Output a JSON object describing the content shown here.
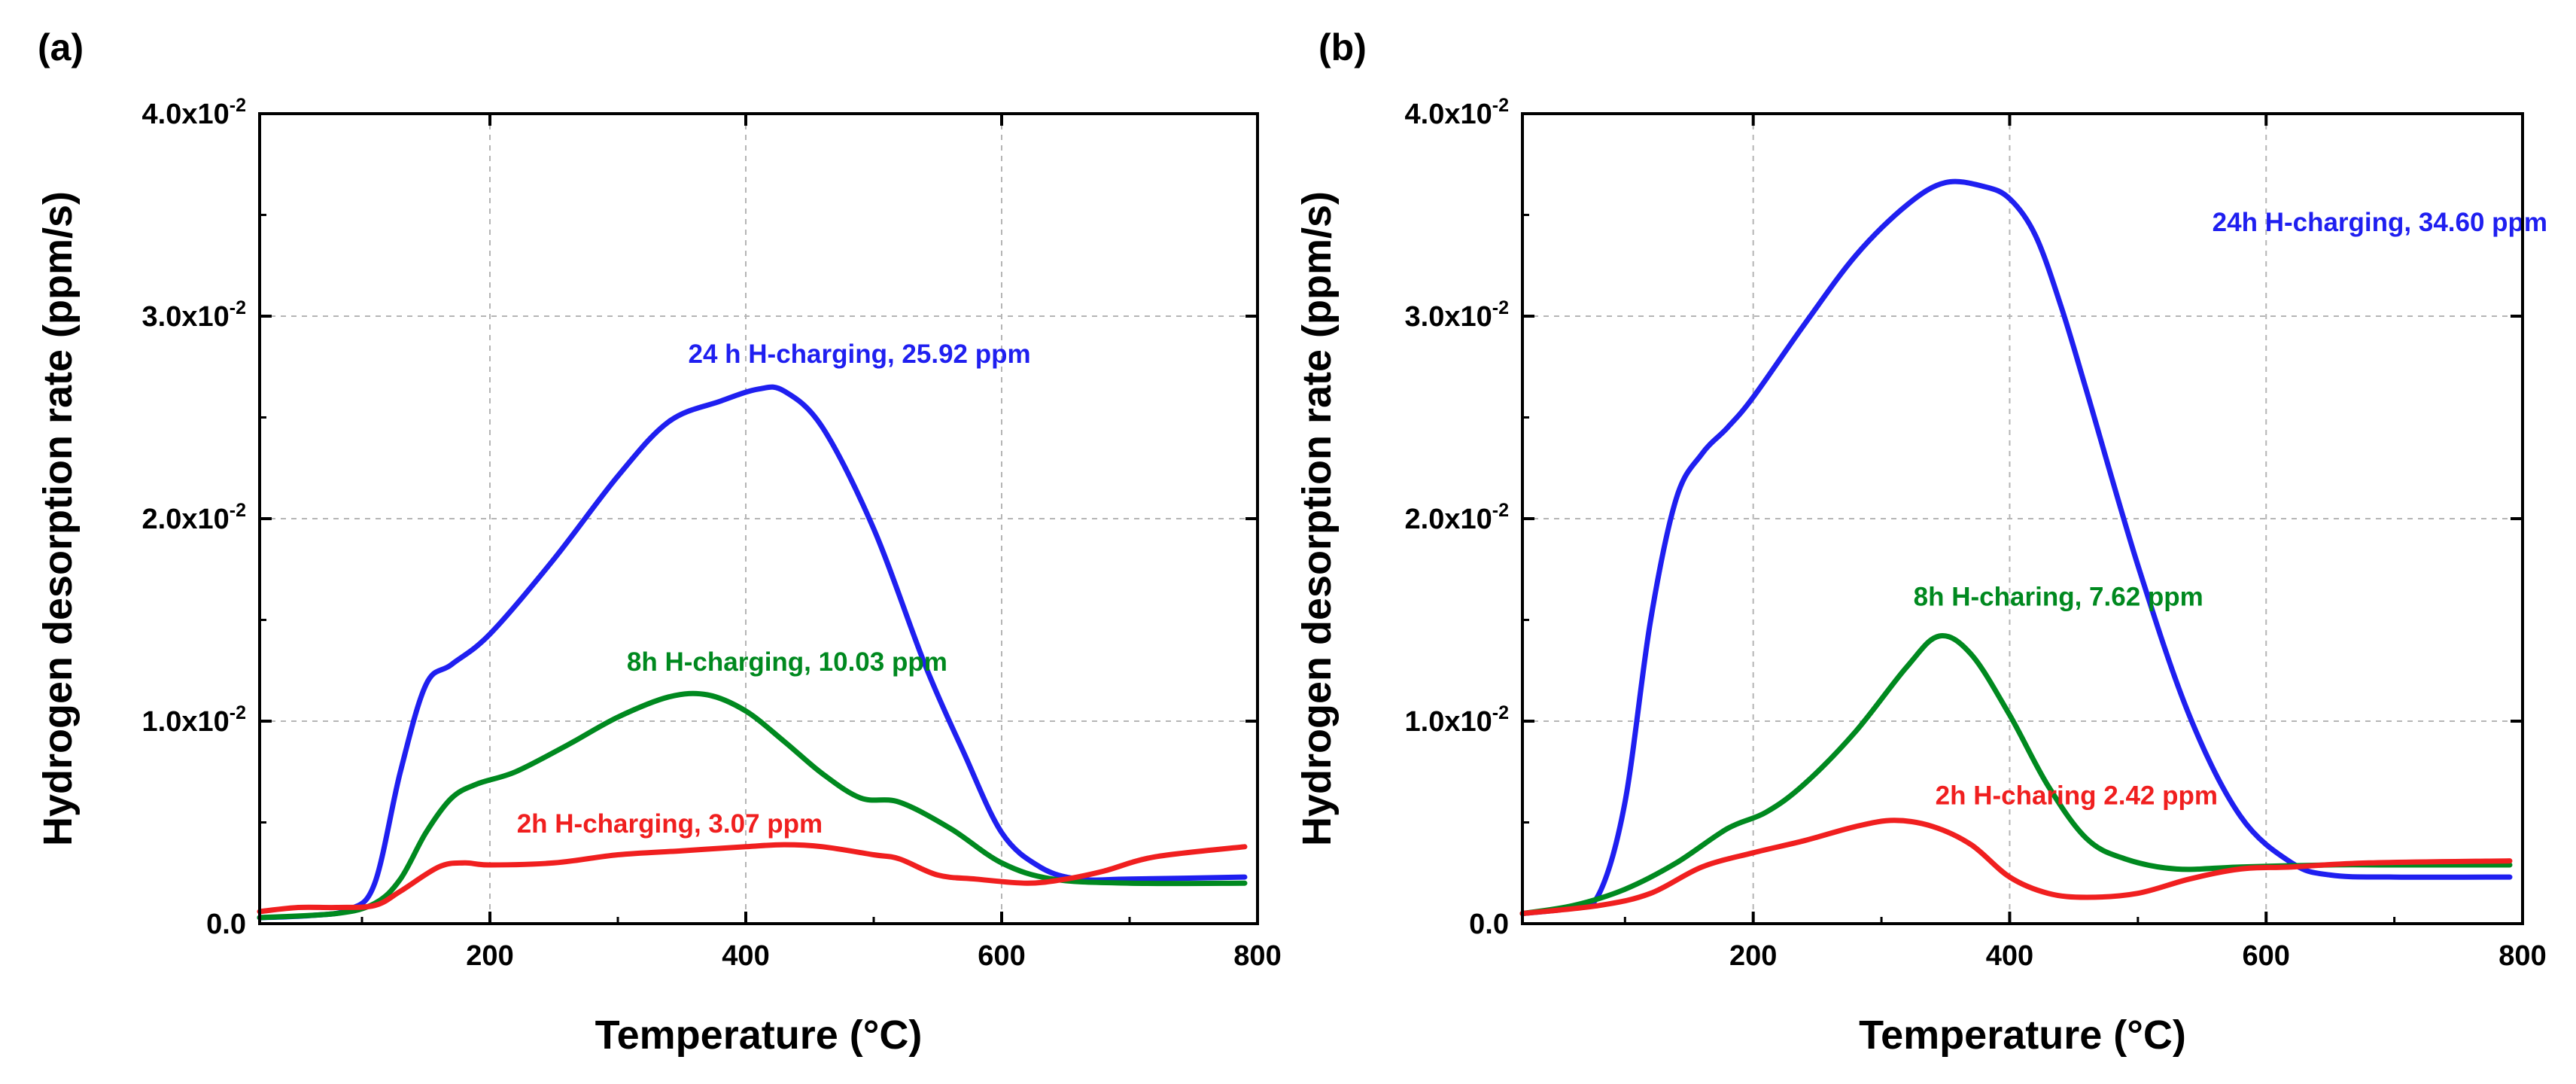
{
  "chart_data": [
    {
      "type": "line",
      "panel_label": "(a)",
      "xlabel": "Temperature (°C)",
      "ylabel": "Hydrogen desorption rate (ppm/s)",
      "xlim": [
        20,
        800
      ],
      "ylim": [
        0,
        0.04
      ],
      "xticks": [
        200,
        400,
        600,
        800
      ],
      "xtick_labels": [
        "200",
        "400",
        "600",
        "800"
      ],
      "yticks": [
        0,
        0.01,
        0.02,
        0.03,
        0.04
      ],
      "ytick_labels": [
        {
          "base": "0.0",
          "exp": ""
        },
        {
          "base": "1.0x10",
          "exp": "-2"
        },
        {
          "base": "2.0x10",
          "exp": "-2"
        },
        {
          "base": "3.0x10",
          "exp": "-2"
        },
        {
          "base": "4.0x10",
          "exp": "-2"
        }
      ],
      "grid": true,
      "series": [
        {
          "name": "24 h H-charging, 25.92 ppm",
          "color": "#1f1ff0",
          "x": [
            20,
            60,
            90,
            110,
            130,
            150,
            170,
            200,
            250,
            300,
            340,
            380,
            410,
            430,
            460,
            500,
            540,
            570,
            600,
            630,
            660,
            700,
            790
          ],
          "y": [
            0.0003,
            0.0004,
            0.0007,
            0.002,
            0.0075,
            0.0118,
            0.0128,
            0.0143,
            0.018,
            0.0221,
            0.0248,
            0.0258,
            0.0264,
            0.0263,
            0.0245,
            0.0195,
            0.0128,
            0.0085,
            0.0045,
            0.0028,
            0.0022,
            0.0022,
            0.0023
          ],
          "annotation": {
            "text": "24 h H-charging, 25.92 ppm",
            "x": 355,
            "y": 0.0277
          }
        },
        {
          "name": "8h H-charging, 10.03 ppm",
          "color": "#00891f",
          "x": [
            20,
            80,
            110,
            130,
            150,
            170,
            190,
            220,
            260,
            300,
            340,
            370,
            400,
            430,
            460,
            490,
            520,
            560,
            600,
            640,
            700,
            790
          ],
          "y": [
            0.0003,
            0.0005,
            0.001,
            0.0022,
            0.0045,
            0.0062,
            0.0069,
            0.0075,
            0.0088,
            0.0102,
            0.0112,
            0.0113,
            0.0105,
            0.009,
            0.0074,
            0.0062,
            0.006,
            0.0047,
            0.003,
            0.0022,
            0.002,
            0.002
          ],
          "annotation": {
            "text": "8h H-charging, 10.03 ppm",
            "x": 307,
            "y": 0.0125
          }
        },
        {
          "name": "2h H-charging, 3.07 ppm",
          "color": "#f01f1f",
          "x": [
            20,
            50,
            80,
            110,
            130,
            160,
            180,
            200,
            250,
            300,
            350,
            400,
            430,
            460,
            500,
            520,
            550,
            580,
            620,
            650,
            680,
            720,
            790
          ],
          "y": [
            0.0006,
            0.0008,
            0.0008,
            0.0009,
            0.0016,
            0.0028,
            0.003,
            0.0029,
            0.003,
            0.0034,
            0.0036,
            0.0038,
            0.0039,
            0.0038,
            0.0034,
            0.0032,
            0.0024,
            0.0022,
            0.002,
            0.0022,
            0.0026,
            0.0033,
            0.0038
          ],
          "annotation": {
            "text": "2h H-charging, 3.07 ppm",
            "x": 221,
            "y": 0.0045
          }
        }
      ]
    },
    {
      "type": "line",
      "panel_label": "(b)",
      "xlabel": "Temperature (°C)",
      "ylabel": "Hydrogen desorption rate (ppm/s)",
      "xlim": [
        20,
        800
      ],
      "ylim": [
        0,
        0.04
      ],
      "xticks": [
        200,
        400,
        600,
        800
      ],
      "xtick_labels": [
        "200",
        "400",
        "600",
        "800"
      ],
      "yticks": [
        0,
        0.01,
        0.02,
        0.03,
        0.04
      ],
      "ytick_labels": [
        {
          "base": "0.0",
          "exp": ""
        },
        {
          "base": "1.0x10",
          "exp": "-2"
        },
        {
          "base": "2.0x10",
          "exp": "-2"
        },
        {
          "base": "3.0x10",
          "exp": "-2"
        },
        {
          "base": "4.0x10",
          "exp": "-2"
        }
      ],
      "grid": true,
      "series": [
        {
          "name": "24h H-charging, 34.60 ppm",
          "color": "#1f1ff0",
          "x": [
            20,
            60,
            80,
            100,
            120,
            140,
            160,
            180,
            200,
            240,
            280,
            320,
            350,
            380,
            400,
            420,
            440,
            460,
            500,
            540,
            580,
            620,
            650,
            700,
            790
          ],
          "y": [
            0.0005,
            0.0008,
            0.0015,
            0.006,
            0.015,
            0.021,
            0.0232,
            0.0245,
            0.026,
            0.0296,
            0.033,
            0.0355,
            0.0366,
            0.0364,
            0.0358,
            0.034,
            0.0305,
            0.0263,
            0.0177,
            0.0103,
            0.0053,
            0.003,
            0.0024,
            0.0023,
            0.0023
          ],
          "annotation": {
            "text": "24h H-charging, 34.60 ppm",
            "x": 558,
            "y": 0.0342
          }
        },
        {
          "name": "8h H-charing, 7.62 ppm",
          "color": "#00891f",
          "x": [
            20,
            60,
            100,
            140,
            180,
            210,
            240,
            280,
            320,
            345,
            370,
            400,
            430,
            460,
            490,
            530,
            580,
            650,
            700,
            790
          ],
          "y": [
            0.0005,
            0.0009,
            0.0017,
            0.003,
            0.0047,
            0.0055,
            0.0069,
            0.0095,
            0.0127,
            0.0142,
            0.0133,
            0.0103,
            0.0068,
            0.0042,
            0.0032,
            0.0027,
            0.0028,
            0.0029,
            0.0029,
            0.0029
          ],
          "annotation": {
            "text": "8h H-charing, 7.62 ppm",
            "x": 325,
            "y": 0.0157
          }
        },
        {
          "name": "2h H-charing 2.42 ppm",
          "color": "#f01f1f",
          "x": [
            20,
            80,
            120,
            160,
            200,
            240,
            280,
            310,
            340,
            370,
            400,
            430,
            460,
            500,
            540,
            580,
            620,
            680,
            790
          ],
          "y": [
            0.0005,
            0.0009,
            0.0015,
            0.0028,
            0.0035,
            0.0041,
            0.0048,
            0.0051,
            0.0048,
            0.0039,
            0.0023,
            0.0015,
            0.0013,
            0.0015,
            0.0022,
            0.0027,
            0.0028,
            0.003,
            0.0031
          ],
          "annotation": {
            "text": "2h H-charing 2.42 ppm",
            "x": 342,
            "y": 0.0059
          }
        }
      ]
    }
  ]
}
